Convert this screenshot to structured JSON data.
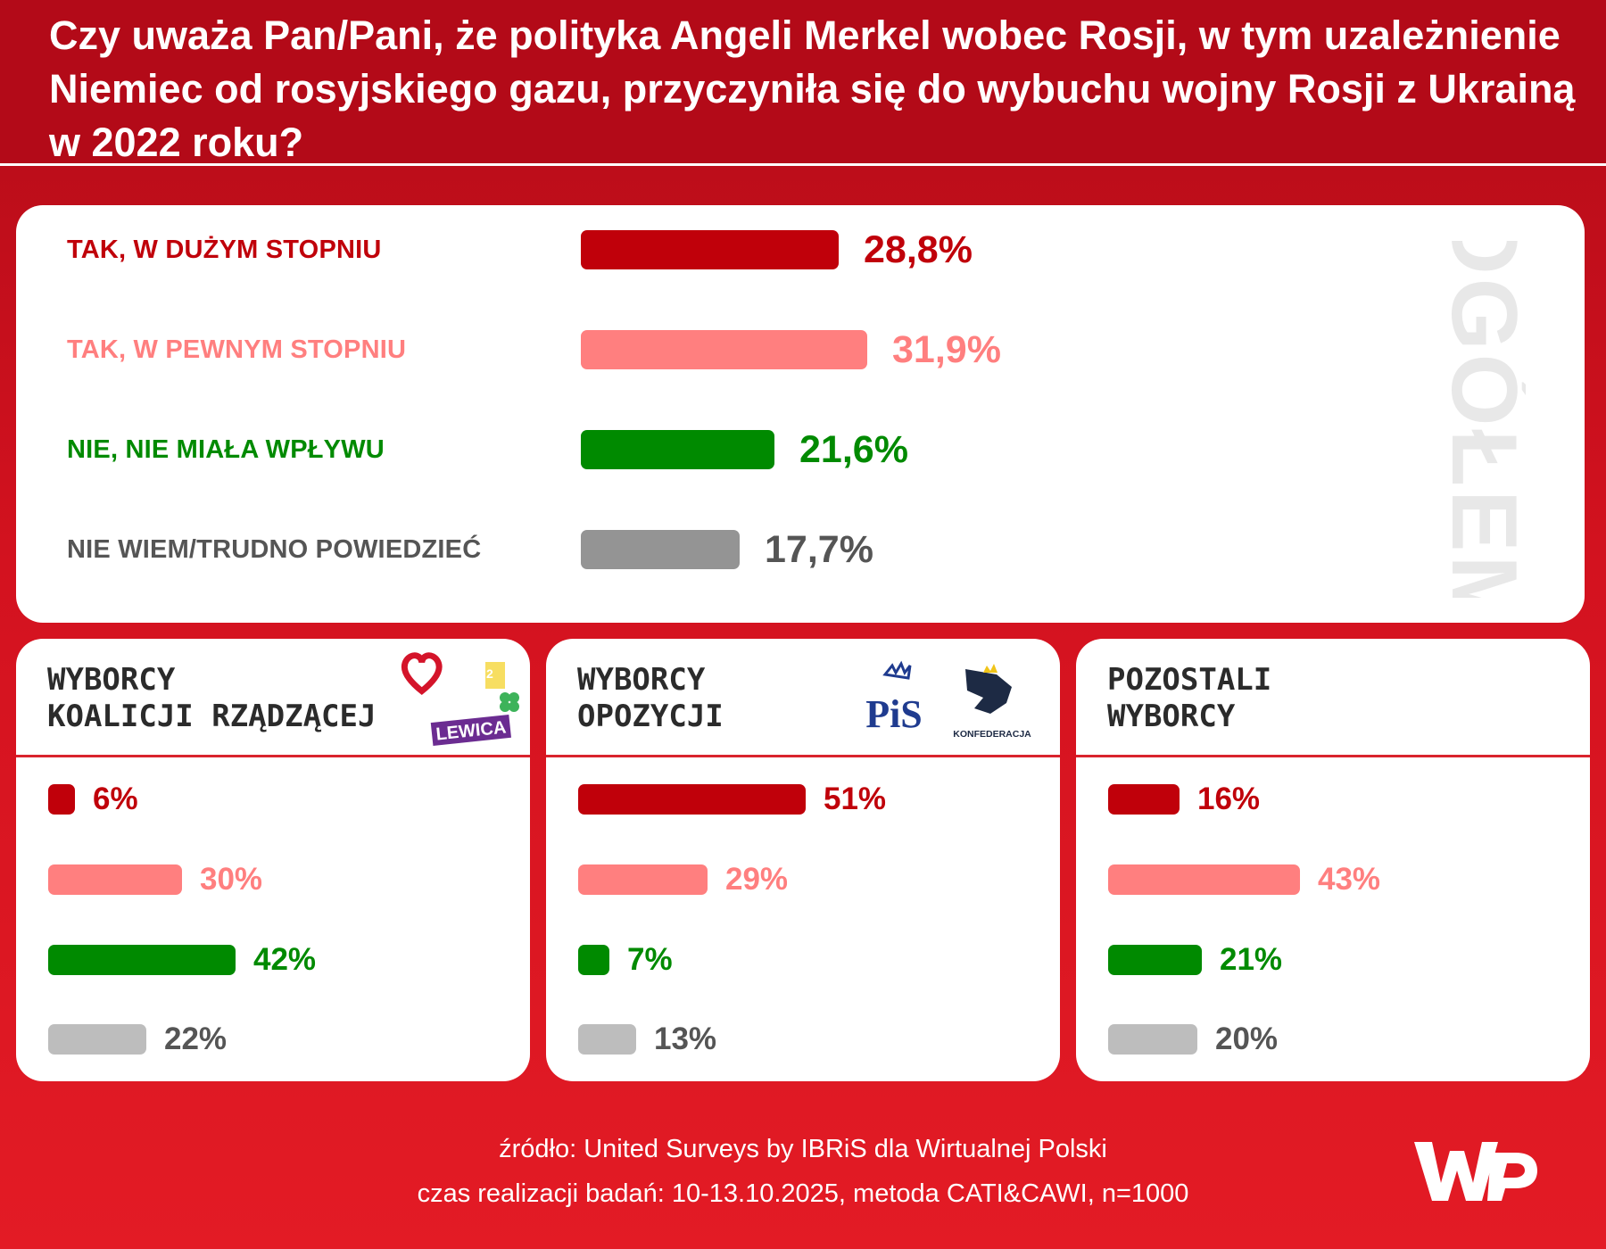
{
  "title": "Czy uważa Pan/Pani, że polityka Angeli Merkel wobec Rosji, w tym uzależnienie Niemiec od rosyjskiego gazu, przyczyniła się do wybuchu wojny Rosji z Ukrainą w 2022 roku?",
  "colors": {
    "strong_yes": "#c0000a",
    "some_yes": "#ff7f7f",
    "no": "#008a00",
    "dont_know": "#949494",
    "dont_know_light": "#bdbdbd",
    "dont_know_text": "#555555",
    "watermark": "#e8e8e8"
  },
  "overall": {
    "watermark": "OGÓŁEM",
    "rows": [
      {
        "label": "TAK, W DUŻYM STOPNIU",
        "value": 28.8,
        "value_label": "28,8%",
        "color_key": "strong_yes"
      },
      {
        "label": "TAK, W PEWNYM STOPNIU",
        "value": 31.9,
        "value_label": "31,9%",
        "color_key": "some_yes"
      },
      {
        "label": "NIE, NIE MIAŁA WPŁYWU",
        "value": 21.6,
        "value_label": "21,6%",
        "color_key": "no"
      },
      {
        "label": "NIE WIEM/TRUDNO POWIEDZIEĆ",
        "value": 17.7,
        "value_label": "17,7%",
        "color_key": "dont_know"
      }
    ]
  },
  "groups": [
    {
      "title_line1": "WYBORCY",
      "title_line2": "KOALICJI RZĄDZĄCEJ",
      "logos": {
        "lewica": "LEWICA"
      },
      "values": [
        6,
        30,
        42,
        22
      ],
      "value_labels": [
        "6%",
        "30%",
        "42%",
        "22%"
      ]
    },
    {
      "title_line1": "WYBORCY",
      "title_line2": "OPOZYCJI",
      "logos": {
        "pis": "PiS",
        "konfederacja": "KONFEDERACJA"
      },
      "values": [
        51,
        29,
        7,
        13
      ],
      "value_labels": [
        "51%",
        "29%",
        "7%",
        "13%"
      ]
    },
    {
      "title_line1": "POZOSTALI",
      "title_line2": "WYBORCY",
      "values": [
        16,
        43,
        21,
        20
      ],
      "value_labels": [
        "16%",
        "43%",
        "21%",
        "20%"
      ]
    }
  ],
  "chart_data": [
    {
      "type": "bar",
      "title": "OGÓŁEM",
      "categories": [
        "TAK, W DUŻYM STOPNIU",
        "TAK, W PEWNYM STOPNIU",
        "NIE, NIE MIAŁA WPŁYWU",
        "NIE WIEM/TRUDNO POWIEDZIEĆ"
      ],
      "values": [
        28.8,
        31.9,
        21.6,
        17.7
      ],
      "unit": "%"
    },
    {
      "type": "bar",
      "title": "WYBORCY KOALICJI RZĄDZĄCEJ",
      "categories": [
        "TAK, W DUŻYM STOPNIU",
        "TAK, W PEWNYM STOPNIU",
        "NIE, NIE MIAŁA WPŁYWU",
        "NIE WIEM/TRUDNO POWIEDZIEĆ"
      ],
      "values": [
        6,
        30,
        42,
        22
      ],
      "unit": "%"
    },
    {
      "type": "bar",
      "title": "WYBORCY OPOZYCJI",
      "categories": [
        "TAK, W DUŻYM STOPNIU",
        "TAK, W PEWNYM STOPNIU",
        "NIE, NIE MIAŁA WPŁYWU",
        "NIE WIEM/TRUDNO POWIEDZIEĆ"
      ],
      "values": [
        51,
        29,
        7,
        13
      ],
      "unit": "%"
    },
    {
      "type": "bar",
      "title": "POZOSTALI WYBORCY",
      "categories": [
        "TAK, W DUŻYM STOPNIU",
        "TAK, W PEWNYM STOPNIU",
        "NIE, NIE MIAŁA WPŁYWU",
        "NIE WIEM/TRUDNO POWIEDZIEĆ"
      ],
      "values": [
        16,
        43,
        21,
        20
      ],
      "unit": "%"
    }
  ],
  "footer": {
    "source": "źródło: United Surveys by IBRiS dla Wirtualnej Polski",
    "method": "czas realizacji badań: 10-13.10.2025, metoda CATI&CAWI, n=1000"
  }
}
